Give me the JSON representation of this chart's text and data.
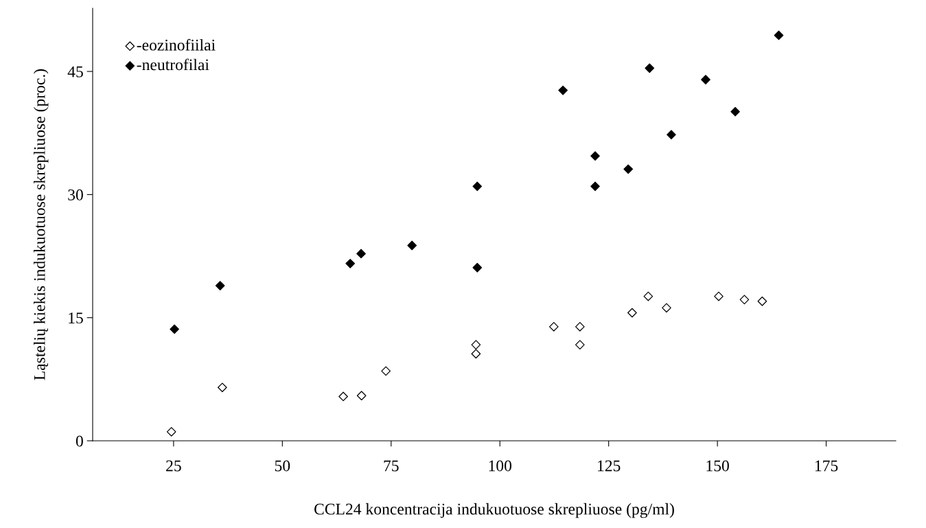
{
  "chart_data": {
    "type": "scatter",
    "xlabel": "CCL24 koncentracija indukuotuose skrepliuose (pg/ml)",
    "ylabel": "Ląstelių kiekis indukuotuose skrepliuose (proc.)",
    "xlim": [
      6.4,
      191
    ],
    "xticks": [
      25,
      50,
      75,
      100,
      125,
      150,
      175
    ],
    "ylim": [
      0,
      52.7
    ],
    "yticks": [
      0,
      15,
      30,
      45
    ],
    "legend": "top left",
    "marker": "diamond",
    "series": [
      {
        "name": "-eozinofiilai",
        "color": "#ffffff",
        "x": [
          24.5,
          36.2,
          64.0,
          68.2,
          73.8,
          94.5,
          94.5,
          112.4,
          118.4,
          118.4,
          130.4,
          134.1,
          138.3,
          150.3,
          156.2,
          160.3
        ],
        "values": [
          1.1,
          6.5,
          5.4,
          5.5,
          8.5,
          11.7,
          10.6,
          13.9,
          13.9,
          11.7,
          15.6,
          17.6,
          16.2,
          17.6,
          17.2,
          17.0
        ]
      },
      {
        "name": "-neutrofilai",
        "color": "#000000",
        "x": [
          25.2,
          35.7,
          65.6,
          68.1,
          79.8,
          94.8,
          94.8,
          114.5,
          121.9,
          121.9,
          129.5,
          134.4,
          139.4,
          147.3,
          154.1,
          164.1
        ],
        "values": [
          13.6,
          18.9,
          21.6,
          22.8,
          23.8,
          31.0,
          21.1,
          42.7,
          34.7,
          31.0,
          33.1,
          45.4,
          37.3,
          44.0,
          40.1,
          49.4
        ]
      }
    ]
  }
}
